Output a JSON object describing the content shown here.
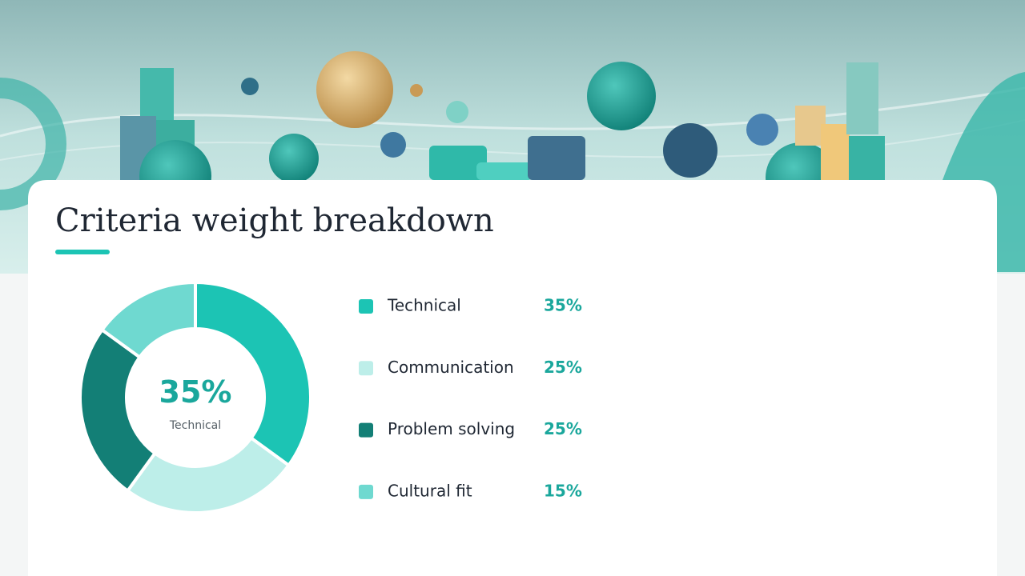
{
  "chart_data": {
    "type": "pie",
    "title": "Criteria weight breakdown",
    "categories": [
      "Technical",
      "Communication",
      "Problem solving",
      "Cultural fit"
    ],
    "values": [
      35,
      25,
      25,
      15
    ],
    "value_labels": [
      "35%",
      "25%",
      "25%",
      "15%"
    ],
    "colors": [
      "#1cc4b4",
      "#bdeee9",
      "#137f76",
      "#6fd9d0"
    ]
  }
}
